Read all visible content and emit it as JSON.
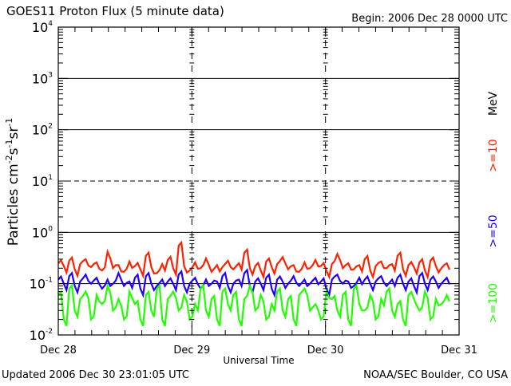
{
  "header": {
    "title": "GOES11 Proton Flux (5 minute data)",
    "begin": "Begin: 2006 Dec 28 0000 UTC"
  },
  "footer": {
    "updated": "Updated 2006 Dec 30 23:01:05 UTC",
    "source": "NOAA/SEC Boulder, CO USA"
  },
  "colors": {
    "p10": "#ff2000",
    "p50": "#2000ff",
    "p100": "#20ff00",
    "axis": "#000000"
  },
  "chart_data": {
    "type": "line",
    "title": "GOES11 Proton Flux (5 minute data)",
    "xlabel": "Universal Time",
    "ylabel": "Particles cm-2s-1sr-1",
    "yscale": "log",
    "ylim": [
      0.01,
      10000
    ],
    "xlim": [
      "2006-12-28 00:00",
      "2006-12-31 00:00"
    ],
    "x_tick_labels": [
      "Dec 28",
      "Dec 29",
      "Dec 30",
      "Dec 31"
    ],
    "y_tick_labels": [
      {
        "base": "10",
        "exp": "-2"
      },
      {
        "base": "10",
        "exp": "-1"
      },
      {
        "base": "10",
        "exp": "0"
      },
      {
        "base": "10",
        "exp": "1"
      },
      {
        "base": "10",
        "exp": "2"
      },
      {
        "base": "10",
        "exp": "3"
      },
      {
        "base": "10",
        "exp": "4"
      }
    ],
    "unit_label": "MeV",
    "x_start": "2006-12-28 00:00",
    "x_step_hours": 0.983,
    "series": [
      {
        "name": ">=10",
        "color": "#ff2000",
        "values": [
          0.25,
          0.22,
          0.28,
          0.19,
          0.24,
          0.3,
          0.21,
          0.26,
          0.18,
          0.42,
          0.2,
          0.23,
          0.17,
          0.27,
          0.22,
          0.19,
          0.35,
          0.21,
          0.16,
          0.24,
          0.29,
          0.2,
          0.55,
          0.22,
          0.18,
          0.26,
          0.2,
          0.31,
          0.17,
          0.23,
          0.21,
          0.28,
          0.19,
          0.25,
          0.4,
          0.2,
          0.22,
          0.18,
          0.27,
          0.21,
          0.24,
          0.33,
          0.19,
          0.23,
          0.17,
          0.26,
          0.2,
          0.29,
          0.22,
          0.18,
          0.24,
          0.38,
          0.2,
          0.25,
          0.19,
          0.23,
          0.3,
          0.18,
          0.22,
          0.27,
          0.2,
          0.24,
          0.35,
          0.19,
          0.23,
          0.21,
          0.26,
          0.18,
          0.28,
          0.22,
          0.2,
          0.25
        ]
      },
      {
        "name": ">=50",
        "color": "#2000ff",
        "values": [
          0.12,
          0.1,
          0.14,
          0.09,
          0.11,
          0.15,
          0.1,
          0.13,
          0.08,
          0.12,
          0.1,
          0.16,
          0.09,
          0.11,
          0.13,
          0.08,
          0.14,
          0.1,
          0.09,
          0.12,
          0.11,
          0.1,
          0.15,
          0.09,
          0.1,
          0.13,
          0.08,
          0.12,
          0.1,
          0.11,
          0.14,
          0.09,
          0.1,
          0.12,
          0.16,
          0.09,
          0.11,
          0.1,
          0.13,
          0.08,
          0.12,
          0.11,
          0.1,
          0.14,
          0.09,
          0.12,
          0.1,
          0.13,
          0.11,
          0.08,
          0.12,
          0.15,
          0.1,
          0.11,
          0.09,
          0.13,
          0.12,
          0.1,
          0.11,
          0.14,
          0.09,
          0.12,
          0.13,
          0.1,
          0.11,
          0.09,
          0.14,
          0.1,
          0.12,
          0.11,
          0.1,
          0.13
        ]
      },
      {
        "name": ">=100",
        "color": "#20ff00",
        "values": [
          0.06,
          0.02,
          0.08,
          0.03,
          0.05,
          0.07,
          0.02,
          0.06,
          0.04,
          0.09,
          0.03,
          0.05,
          0.02,
          0.07,
          0.04,
          0.02,
          0.06,
          0.03,
          0.08,
          0.02,
          0.05,
          0.07,
          0.03,
          0.06,
          0.02,
          0.04,
          0.08,
          0.03,
          0.05,
          0.02,
          0.07,
          0.04,
          0.06,
          0.02,
          0.05,
          0.09,
          0.03,
          0.06,
          0.02,
          0.04,
          0.07,
          0.03,
          0.05,
          0.02,
          0.06,
          0.08,
          0.03,
          0.04,
          0.02,
          0.07,
          0.05,
          0.03,
          0.06,
          0.02,
          0.08,
          0.04,
          0.03,
          0.06,
          0.02,
          0.05,
          0.07,
          0.03,
          0.04,
          0.02,
          0.06,
          0.05,
          0.03,
          0.07,
          0.02,
          0.05,
          0.04,
          0.06
        ]
      }
    ],
    "gridlines": {
      "solid": [
        1000,
        100,
        1,
        0.1
      ],
      "dashed": [
        10
      ],
      "vertical_dashed": [
        "Dec 29",
        "Dec 30"
      ]
    }
  }
}
